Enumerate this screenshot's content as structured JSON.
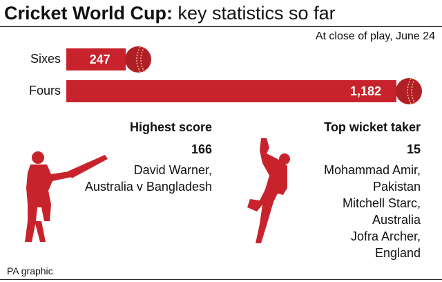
{
  "title_bold": "Cricket World Cup:",
  "title_rest": " key statistics so far",
  "subtitle": "At close of play, June 24",
  "colors": {
    "bar": "#c8232c",
    "ball": "#b01f26",
    "seam": "#f2b48a"
  },
  "chart_data": {
    "type": "bar",
    "orientation": "horizontal",
    "categories": [
      "Sixes",
      "Fours"
    ],
    "values": [
      247,
      1182
    ],
    "value_labels": [
      "247",
      "1,182"
    ],
    "title": "Cricket World Cup: key statistics so far",
    "xlim": [
      0,
      1182
    ]
  },
  "highest_score": {
    "heading": "Highest score",
    "value": "166",
    "lines": [
      "David Warner,",
      "Australia v Bangladesh"
    ]
  },
  "top_wicket_taker": {
    "heading": "Top wicket taker",
    "value": "15",
    "lines": [
      "Mohammad Amir,",
      "Pakistan",
      "Mitchell Starc,",
      "Australia",
      "Jofra Archer,",
      "England"
    ]
  },
  "icons": [
    "cricket-ball-icon",
    "batsman-silhouette-icon",
    "bowler-silhouette-icon"
  ],
  "source": "PA graphic"
}
